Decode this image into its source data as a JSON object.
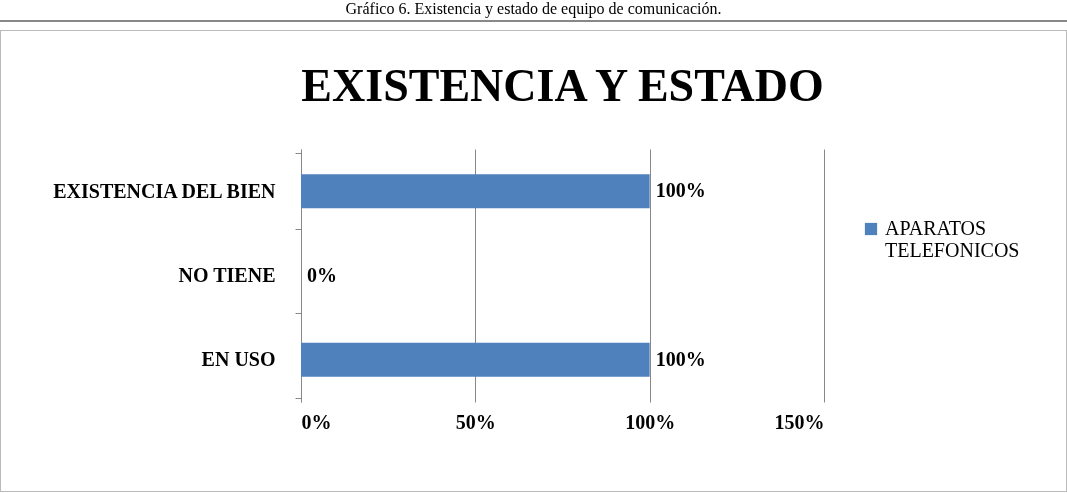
{
  "chart_data": {
    "type": "bar",
    "orientation": "horizontal",
    "title": "EXISTENCIA Y ESTADO",
    "annotations": [
      "Gráfico 6. Existencia y estado de equipo de comunicación."
    ],
    "categories": [
      "EXISTENCIA DEL BIEN",
      "NO TIENE",
      "EN USO"
    ],
    "series": [
      {
        "name": "APARATOS TELEFONICOS",
        "color": "#4f81bd",
        "values": [
          100,
          0,
          100
        ],
        "value_labels": [
          "100%",
          "0%",
          "100%"
        ]
      }
    ],
    "xlim": [
      0,
      150
    ],
    "xticks": [
      {
        "value": 0,
        "label": "0%"
      },
      {
        "value": 50,
        "label": "50%"
      },
      {
        "value": 100,
        "label": "100%"
      },
      {
        "value": 150,
        "label": "150%"
      }
    ],
    "grid": "x",
    "legend": "right"
  }
}
